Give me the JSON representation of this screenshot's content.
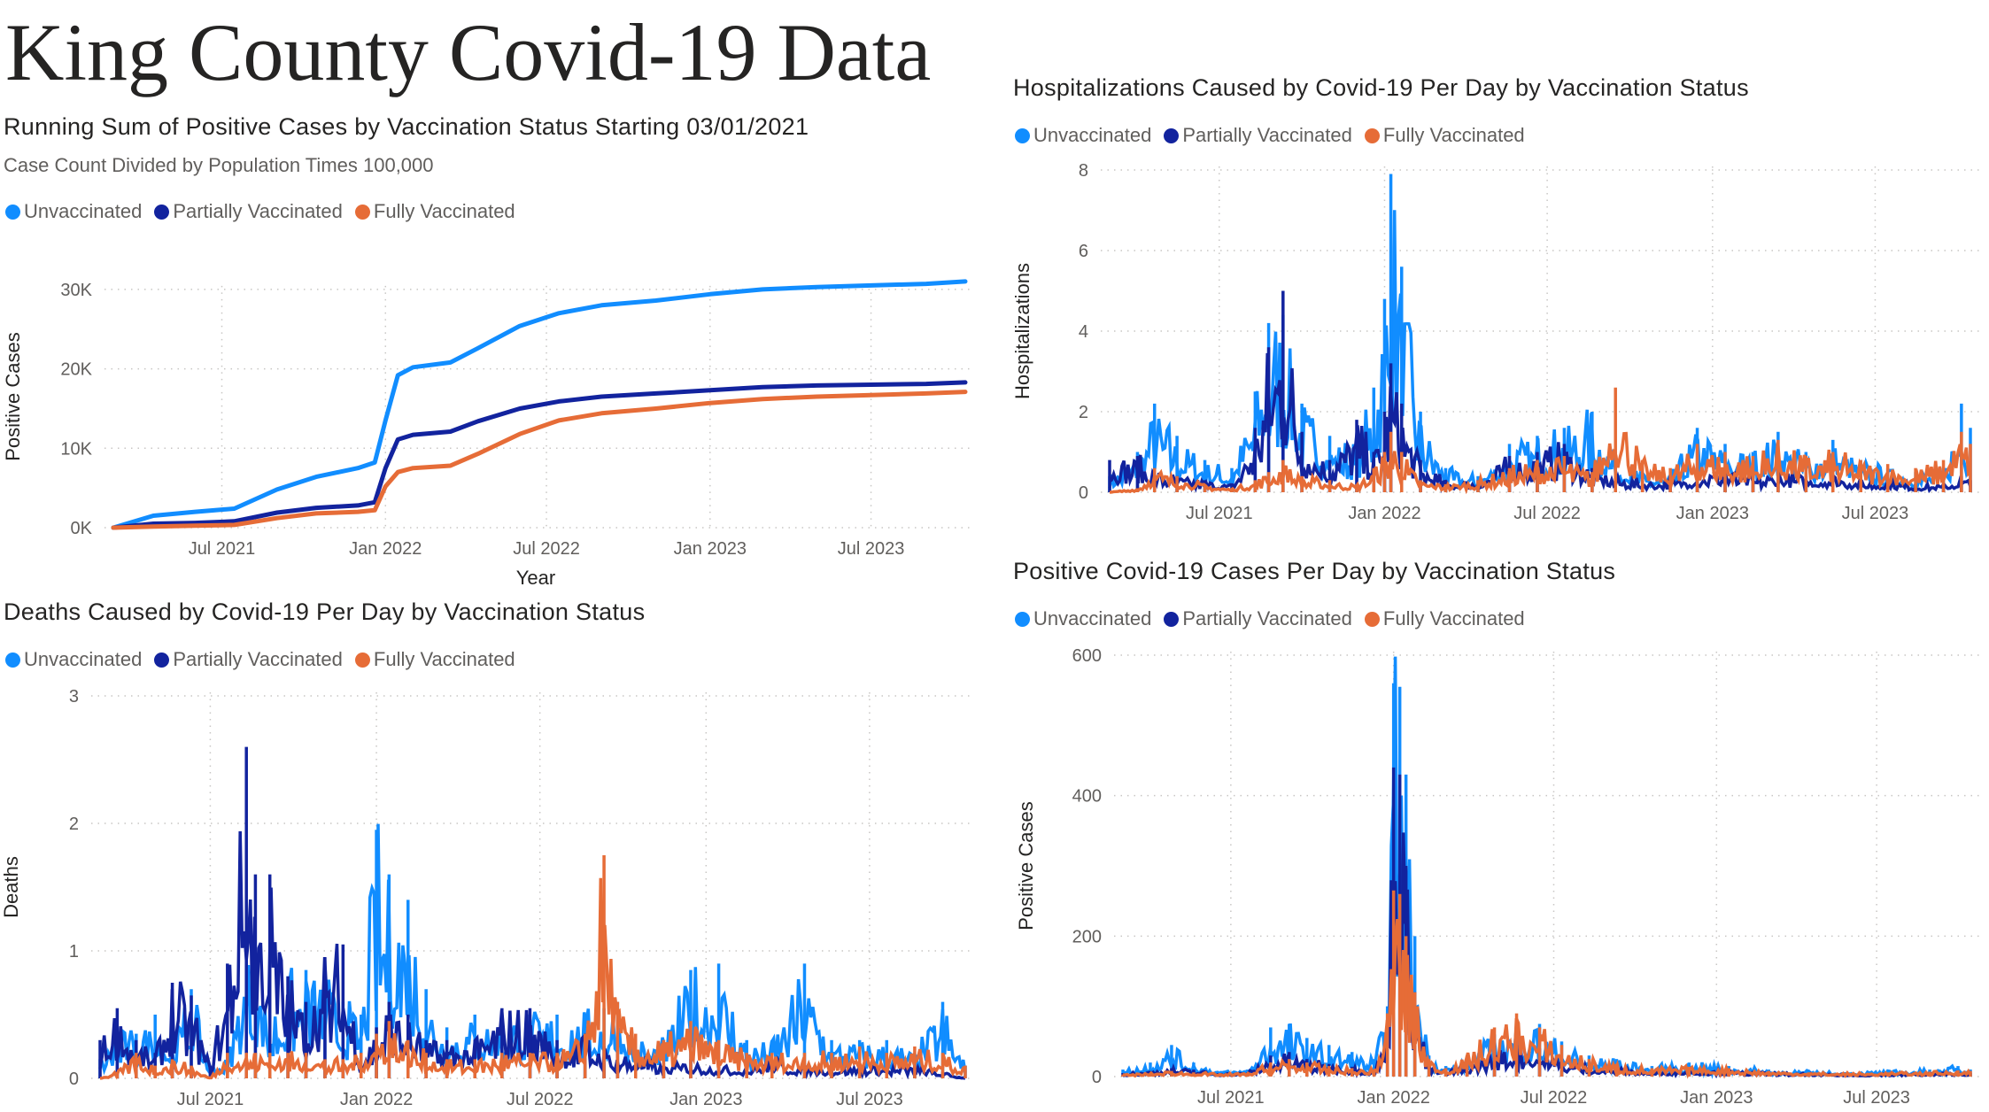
{
  "page_title": "King County Covid-19 Data",
  "colors": {
    "unvaccinated": "#118DFF",
    "partially_vaccinated": "#12239E",
    "fully_vaccinated": "#E66C37"
  },
  "legend": [
    "Unvaccinated",
    "Partially Vaccinated",
    "Fully Vaccinated"
  ],
  "chart_data": [
    {
      "id": "running-sum",
      "type": "line",
      "title": "Running Sum of Positive Cases by Vaccination Status Starting 03/01/2021",
      "subtitle": "Case Count Divided by Population Times 100,000",
      "xlabel": "Year",
      "ylabel": "Positive Cases",
      "x_range": [
        "2021-03-01",
        "2023-10-15"
      ],
      "x_ticks": [
        "Jul 2021",
        "Jan 2022",
        "Jul 2022",
        "Jan 2023",
        "Jul 2023"
      ],
      "ylim": [
        0,
        33000
      ],
      "y_ticks": [
        0,
        10000,
        20000,
        30000
      ],
      "y_tick_labels": [
        "0K",
        "10K",
        "20K",
        "30K"
      ],
      "grid": true,
      "legend_position": "top-left",
      "x": [
        "2021-03-01",
        "2021-04-15",
        "2021-06-01",
        "2021-07-15",
        "2021-09-01",
        "2021-10-15",
        "2021-12-01",
        "2021-12-20",
        "2022-01-01",
        "2022-01-15",
        "2022-02-01",
        "2022-03-15",
        "2022-04-15",
        "2022-06-01",
        "2022-07-15",
        "2022-09-01",
        "2022-11-01",
        "2023-01-01",
        "2023-03-01",
        "2023-05-01",
        "2023-07-01",
        "2023-09-01",
        "2023-10-15"
      ],
      "series": [
        {
          "name": "Unvaccinated",
          "values": [
            0,
            1500,
            2000,
            2400,
            4800,
            6400,
            7500,
            8200,
            13500,
            19200,
            20200,
            20800,
            22600,
            25400,
            27000,
            28000,
            28600,
            29400,
            30000,
            30300,
            30500,
            30700,
            31000
          ]
        },
        {
          "name": "Partially Vaccinated",
          "values": [
            0,
            500,
            600,
            800,
            1900,
            2500,
            2800,
            3200,
            7500,
            11100,
            11700,
            12100,
            13400,
            15000,
            15900,
            16500,
            16900,
            17300,
            17700,
            17900,
            18000,
            18100,
            18300
          ]
        },
        {
          "name": "Fully Vaccinated",
          "values": [
            0,
            150,
            250,
            350,
            1200,
            1800,
            2000,
            2200,
            5200,
            7000,
            7500,
            7800,
            9300,
            11800,
            13500,
            14400,
            15000,
            15700,
            16200,
            16500,
            16700,
            16900,
            17100
          ]
        }
      ]
    },
    {
      "id": "hospitalizations",
      "type": "line",
      "title": "Hospitalizations Caused by Covid-19 Per Day by Vaccination Status",
      "xlabel": "",
      "ylabel": "Hospitalizations",
      "x_range": [
        "2021-03-01",
        "2023-10-15"
      ],
      "x_ticks": [
        "Jul 2021",
        "Jan 2022",
        "Jul 2022",
        "Jan 2023",
        "Jul 2023"
      ],
      "ylim": [
        0,
        8
      ],
      "y_ticks": [
        0,
        2,
        4,
        6,
        8
      ],
      "y_tick_labels": [
        "0",
        "2",
        "4",
        "6",
        "8"
      ],
      "grid": true,
      "legend_position": "top-left",
      "x": [
        "2021-03-01",
        "2021-04-01",
        "2021-04-20",
        "2021-05-15",
        "2021-06-15",
        "2021-07-15",
        "2021-08-10",
        "2021-08-25",
        "2021-09-10",
        "2021-10-01",
        "2021-11-01",
        "2021-12-01",
        "2021-12-20",
        "2022-01-01",
        "2022-01-08",
        "2022-01-20",
        "2022-02-10",
        "2022-03-10",
        "2022-04-15",
        "2022-05-20",
        "2022-06-20",
        "2022-07-20",
        "2022-08-20",
        "2022-09-15",
        "2022-10-15",
        "2022-11-15",
        "2022-12-15",
        "2023-01-15",
        "2023-02-15",
        "2023-03-15",
        "2023-04-15",
        "2023-05-15",
        "2023-06-15",
        "2023-07-15",
        "2023-08-15",
        "2023-09-15",
        "2023-10-05",
        "2023-10-15"
      ],
      "series": [
        {
          "name": "Unvaccinated",
          "values": [
            0.4,
            1.0,
            2.2,
            1.4,
            0.8,
            0.6,
            2.5,
            4.2,
            4.4,
            2.2,
            1.4,
            1.2,
            2.6,
            4.8,
            7.9,
            5.6,
            2.0,
            0.6,
            0.4,
            1.2,
            1.4,
            1.6,
            2.0,
            1.0,
            0.5,
            0.4,
            1.6,
            1.2,
            1.0,
            1.5,
            1.0,
            1.3,
            0.8,
            0.6,
            0.5,
            0.6,
            2.2,
            1.6
          ]
        },
        {
          "name": "Partially Vaccinated",
          "values": [
            0.8,
            0.9,
            0.6,
            0.4,
            0.3,
            0.2,
            1.6,
            3.6,
            5.0,
            1.5,
            0.8,
            1.8,
            1.0,
            2.0,
            3.2,
            2.2,
            0.8,
            0.3,
            0.3,
            0.9,
            1.0,
            1.2,
            0.6,
            0.4,
            0.3,
            0.3,
            0.5,
            0.6,
            0.4,
            0.5,
            0.4,
            0.5,
            0.3,
            0.3,
            0.2,
            0.2,
            0.4,
            0.3
          ]
        },
        {
          "name": "Fully Vaccinated",
          "values": [
            0.0,
            0.1,
            0.6,
            0.4,
            0.2,
            0.1,
            0.3,
            0.5,
            0.8,
            0.4,
            0.3,
            0.2,
            0.6,
            1.0,
            1.5,
            1.0,
            0.3,
            0.2,
            0.3,
            0.6,
            0.8,
            0.9,
            0.5,
            2.6,
            0.8,
            0.6,
            1.2,
            1.0,
            0.9,
            1.3,
            0.9,
            1.0,
            0.8,
            0.7,
            0.6,
            0.8,
            1.5,
            1.2
          ]
        }
      ]
    },
    {
      "id": "deaths",
      "type": "line",
      "title": "Deaths Caused by Covid-19 Per Day by Vaccination Status",
      "xlabel": "",
      "ylabel": "Deaths",
      "x_range": [
        "2021-03-01",
        "2023-10-15"
      ],
      "x_ticks": [
        "Jul 2021",
        "Jan 2022",
        "Jul 2022",
        "Jan 2023",
        "Jul 2023"
      ],
      "ylim": [
        0,
        3
      ],
      "y_ticks": [
        0,
        1,
        2,
        3
      ],
      "y_tick_labels": [
        "0",
        "1",
        "2",
        "3"
      ],
      "grid": true,
      "legend_position": "top-left",
      "x": [
        "2021-03-01",
        "2021-03-20",
        "2021-04-10",
        "2021-05-01",
        "2021-05-20",
        "2021-06-10",
        "2021-07-01",
        "2021-07-20",
        "2021-08-10",
        "2021-08-20",
        "2021-09-05",
        "2021-09-25",
        "2021-10-15",
        "2021-11-05",
        "2021-11-25",
        "2021-12-15",
        "2022-01-01",
        "2022-01-15",
        "2022-02-05",
        "2022-02-25",
        "2022-03-20",
        "2022-04-20",
        "2022-05-20",
        "2022-06-20",
        "2022-07-20",
        "2022-08-20",
        "2022-09-10",
        "2022-09-25",
        "2022-10-15",
        "2022-11-15",
        "2022-12-15",
        "2023-01-15",
        "2023-02-15",
        "2023-03-15",
        "2023-04-20",
        "2023-05-20",
        "2023-06-20",
        "2023-07-20",
        "2023-08-20",
        "2023-09-20",
        "2023-10-15"
      ],
      "series": [
        {
          "name": "Unvaccinated",
          "values": [
            0.15,
            0.4,
            0.35,
            0.5,
            0.3,
            0.7,
            0.1,
            0.15,
            1.05,
            0.9,
            0.5,
            0.8,
            0.85,
            0.8,
            0.6,
            0.5,
            1.95,
            1.6,
            1.4,
            0.7,
            0.4,
            0.5,
            0.5,
            0.5,
            0.5,
            0.5,
            0.55,
            0.6,
            0.3,
            0.3,
            0.85,
            0.9,
            0.3,
            0.3,
            0.9,
            0.3,
            0.3,
            0.3,
            0.2,
            0.6,
            0.1
          ]
        },
        {
          "name": "Partially Vaccinated",
          "values": [
            0.3,
            0.55,
            0.3,
            0.2,
            0.75,
            0.65,
            0.1,
            0.9,
            2.6,
            1.6,
            1.6,
            0.8,
            0.6,
            0.95,
            1.05,
            0.2,
            0.4,
            0.6,
            0.5,
            0.3,
            0.3,
            0.3,
            0.55,
            0.55,
            0.3,
            0.35,
            0.25,
            0.2,
            0.2,
            0.1,
            0.15,
            0.1,
            0.1,
            0.15,
            0.1,
            0.1,
            0.1,
            0.1,
            0.1,
            0.05,
            0.0
          ]
        },
        {
          "name": "Fully Vaccinated",
          "values": [
            0.0,
            0.05,
            0.2,
            0.1,
            0.15,
            0.1,
            0.0,
            0.2,
            0.2,
            0.2,
            0.2,
            0.2,
            0.2,
            0.15,
            0.15,
            0.2,
            0.35,
            0.45,
            0.3,
            0.2,
            0.15,
            0.15,
            0.2,
            0.2,
            0.2,
            0.35,
            1.75,
            0.6,
            0.35,
            0.3,
            0.45,
            0.3,
            0.2,
            0.2,
            0.2,
            0.2,
            0.25,
            0.2,
            0.25,
            0.2,
            0.1
          ]
        }
      ]
    },
    {
      "id": "positive-cases",
      "type": "line",
      "title": "Positive Covid-19 Cases Per Day by Vaccination Status",
      "xlabel": "",
      "ylabel": "Positive Cases",
      "x_range": [
        "2021-03-01",
        "2023-10-15"
      ],
      "x_ticks": [
        "Jul 2021",
        "Jan 2022",
        "Jul 2022",
        "Jan 2023",
        "Jul 2023"
      ],
      "ylim": [
        0,
        600
      ],
      "y_ticks": [
        0,
        200,
        400,
        600
      ],
      "y_tick_labels": [
        "0",
        "200",
        "400",
        "600"
      ],
      "grid": true,
      "legend_position": "top-left",
      "x": [
        "2021-03-01",
        "2021-04-01",
        "2021-04-25",
        "2021-05-20",
        "2021-06-20",
        "2021-07-20",
        "2021-08-15",
        "2021-09-05",
        "2021-09-25",
        "2021-10-20",
        "2021-11-15",
        "2021-12-10",
        "2021-12-25",
        "2022-01-01",
        "2022-01-08",
        "2022-01-15",
        "2022-01-25",
        "2022-02-10",
        "2022-03-01",
        "2022-03-25",
        "2022-04-25",
        "2022-05-20",
        "2022-06-15",
        "2022-07-10",
        "2022-08-10",
        "2022-09-10",
        "2022-10-20",
        "2022-12-01",
        "2023-01-15",
        "2023-03-01",
        "2023-04-15",
        "2023-06-01",
        "2023-07-15",
        "2023-08-30",
        "2023-10-01",
        "2023-10-15"
      ],
      "series": [
        {
          "name": "Unvaccinated",
          "values": [
            10,
            20,
            45,
            20,
            8,
            10,
            70,
            75,
            55,
            45,
            35,
            25,
            100,
            560,
            555,
            430,
            200,
            30,
            15,
            25,
            60,
            80,
            75,
            50,
            30,
            25,
            15,
            20,
            15,
            10,
            8,
            6,
            8,
            10,
            15,
            10
          ]
        },
        {
          "name": "Partially Vaccinated",
          "values": [
            5,
            8,
            12,
            10,
            5,
            6,
            30,
            35,
            25,
            18,
            14,
            10,
            60,
            440,
            430,
            300,
            120,
            15,
            8,
            15,
            35,
            45,
            40,
            25,
            15,
            12,
            8,
            10,
            8,
            6,
            4,
            3,
            4,
            5,
            6,
            5
          ]
        },
        {
          "name": "Fully Vaccinated",
          "values": [
            3,
            5,
            8,
            6,
            4,
            5,
            20,
            25,
            20,
            15,
            12,
            10,
            90,
            265,
            260,
            200,
            120,
            25,
            12,
            30,
            70,
            90,
            70,
            45,
            25,
            18,
            12,
            14,
            12,
            8,
            6,
            5,
            6,
            7,
            9,
            8
          ]
        }
      ]
    }
  ]
}
